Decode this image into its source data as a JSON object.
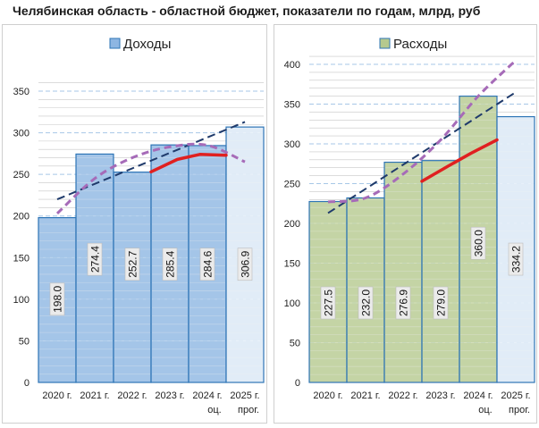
{
  "title": "Челябинская область - областной бюджет,  показатели по годам, млрд, руб",
  "colors": {
    "income_fill": "#8db6e2",
    "income_fill_forecast": "#dce9f6",
    "income_border": "#2e75b6",
    "expense_fill": "#b5c98e",
    "expense_fill_forecast": "#dce9f6",
    "expense_border": "#2e75b6",
    "red_line": "#e02020",
    "trend_dashed": "#1f3a6b",
    "poly_dashed": "#a66bb8",
    "gridline": "#a7c7e7"
  },
  "chart_data": [
    {
      "type": "bar",
      "legend": "Доходы",
      "categories": [
        "2020 г.",
        "2021 г.",
        "2022 г.",
        "2023 г.",
        "2024 г.",
        "2025 г."
      ],
      "category_sublabels": [
        "",
        "",
        "",
        "",
        "оц.",
        "прог."
      ],
      "values": [
        198.0,
        274.4,
        252.7,
        285.4,
        284.6,
        306.9
      ],
      "data_labels": [
        "198.0",
        "274.4",
        "252.7",
        "285.4",
        "284.6",
        "306.9"
      ],
      "ylim": [
        0,
        350
      ],
      "yticks": [
        0,
        50,
        100,
        150,
        200,
        250,
        300,
        350
      ],
      "red_line": {
        "x": [
          3,
          3.7,
          4.3,
          5
        ],
        "y": [
          253,
          268,
          274,
          273
        ]
      },
      "linear_trend": {
        "from": [
          0.5,
          220
        ],
        "to": [
          5.5,
          313
        ]
      },
      "poly_trend": {
        "x": [
          0.5,
          1.5,
          2.5,
          3.5,
          4.5,
          5.5
        ],
        "y": [
          203,
          245,
          270,
          283,
          285,
          265
        ]
      }
    },
    {
      "type": "bar",
      "legend": "Расходы",
      "categories": [
        "2020 г.",
        "2021 г.",
        "2022 г.",
        "2023 г.",
        "2024 г.",
        "2025 г."
      ],
      "category_sublabels": [
        "",
        "",
        "",
        "",
        "оц.",
        "прог."
      ],
      "values": [
        227.5,
        232.0,
        276.9,
        279.0,
        360.0,
        334.2
      ],
      "data_labels": [
        "227.5",
        "232.0",
        "276.9",
        "279.0",
        "360.0",
        "334.2"
      ],
      "ylim": [
        0,
        400
      ],
      "yticks": [
        0,
        50,
        100,
        150,
        200,
        250,
        300,
        350,
        400
      ],
      "red_line": {
        "x": [
          3,
          3.7,
          4.3,
          5
        ],
        "y": [
          253,
          272,
          288,
          305
        ]
      },
      "linear_trend": {
        "from": [
          0.5,
          213
        ],
        "to": [
          5.5,
          365
        ]
      },
      "poly_trend": {
        "x": [
          0.5,
          1.5,
          2.5,
          3.5,
          4.5,
          5.5
        ],
        "y": [
          227,
          232,
          262,
          305,
          360,
          405
        ]
      }
    }
  ]
}
